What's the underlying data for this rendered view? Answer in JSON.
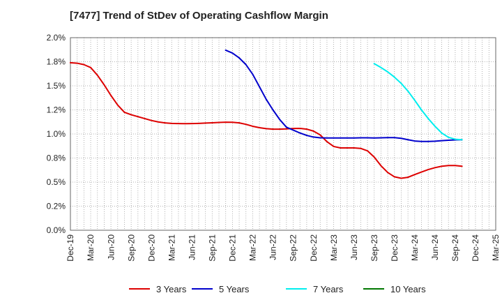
{
  "chart_data": {
    "type": "line",
    "title": "[7477]  Trend of StDev of Operating Cashflow Margin",
    "xlabel": "",
    "ylabel": "",
    "x_ticks": [
      "Dec-19",
      "Mar-20",
      "Jun-20",
      "Sep-20",
      "Dec-20",
      "Mar-21",
      "Jun-21",
      "Sep-21",
      "Dec-21",
      "Mar-22",
      "Jun-22",
      "Sep-22",
      "Dec-22",
      "Mar-23",
      "Jun-23",
      "Sep-23",
      "Dec-23",
      "Mar-24",
      "Jun-24",
      "Sep-24",
      "Dec-24",
      "Mar-25"
    ],
    "y_ticks": [
      "0.0%",
      "0.2%",
      "0.5%",
      "0.8%",
      "1.0%",
      "1.2%",
      "1.5%",
      "1.8%",
      "2.0%"
    ],
    "y_tick_values": [
      0,
      0.25,
      0.5,
      0.75,
      1.0,
      1.25,
      1.5,
      1.75,
      2.0
    ],
    "ylim": [
      0,
      2.0
    ],
    "y_unit": "%",
    "grid": true,
    "legend_position": "bottom",
    "series": [
      {
        "name": "3 Years",
        "color": "#dd0000",
        "points": [
          [
            "Dec-19",
            1.74
          ],
          [
            "Jan-20",
            1.735
          ],
          [
            "Feb-20",
            1.72
          ],
          [
            "Mar-20",
            1.69
          ],
          [
            "Apr-20",
            1.61
          ],
          [
            "May-20",
            1.51
          ],
          [
            "Jun-20",
            1.4
          ],
          [
            "Jul-20",
            1.3
          ],
          [
            "Aug-20",
            1.225
          ],
          [
            "Sep-20",
            1.2
          ],
          [
            "Oct-20",
            1.18
          ],
          [
            "Nov-20",
            1.16
          ],
          [
            "Dec-20",
            1.14
          ],
          [
            "Jan-21",
            1.125
          ],
          [
            "Feb-21",
            1.115
          ],
          [
            "Mar-21",
            1.11
          ],
          [
            "Apr-21",
            1.108
          ],
          [
            "May-21",
            1.107
          ],
          [
            "Jun-21",
            1.108
          ],
          [
            "Jul-21",
            1.11
          ],
          [
            "Aug-21",
            1.113
          ],
          [
            "Sep-21",
            1.116
          ],
          [
            "Oct-21",
            1.12
          ],
          [
            "Nov-21",
            1.122
          ],
          [
            "Dec-21",
            1.121
          ],
          [
            "Jan-22",
            1.115
          ],
          [
            "Feb-22",
            1.1
          ],
          [
            "Mar-22",
            1.08
          ],
          [
            "Apr-22",
            1.065
          ],
          [
            "May-22",
            1.055
          ],
          [
            "Jun-22",
            1.05
          ],
          [
            "Jul-22",
            1.05
          ],
          [
            "Aug-22",
            1.053
          ],
          [
            "Sep-22",
            1.057
          ],
          [
            "Oct-22",
            1.058
          ],
          [
            "Nov-22",
            1.05
          ],
          [
            "Dec-22",
            1.03
          ],
          [
            "Jan-23",
            0.99
          ],
          [
            "Feb-23",
            0.92
          ],
          [
            "Mar-23",
            0.87
          ],
          [
            "Apr-23",
            0.855
          ],
          [
            "May-23",
            0.855
          ],
          [
            "Jun-23",
            0.855
          ],
          [
            "Jul-23",
            0.85
          ],
          [
            "Aug-23",
            0.825
          ],
          [
            "Sep-23",
            0.76
          ],
          [
            "Oct-23",
            0.67
          ],
          [
            "Nov-23",
            0.6
          ],
          [
            "Dec-23",
            0.555
          ],
          [
            "Jan-24",
            0.54
          ],
          [
            "Feb-24",
            0.55
          ],
          [
            "Mar-24",
            0.578
          ],
          [
            "Apr-24",
            0.605
          ],
          [
            "May-24",
            0.63
          ],
          [
            "Jun-24",
            0.65
          ],
          [
            "Jul-24",
            0.665
          ],
          [
            "Aug-24",
            0.672
          ],
          [
            "Sep-24",
            0.672
          ],
          [
            "Oct-24",
            0.665
          ]
        ]
      },
      {
        "name": "5 Years",
        "color": "#0000cc",
        "points": [
          [
            "Nov-21",
            1.87
          ],
          [
            "Dec-21",
            1.84
          ],
          [
            "Jan-22",
            1.79
          ],
          [
            "Feb-22",
            1.72
          ],
          [
            "Mar-22",
            1.62
          ],
          [
            "Apr-22",
            1.49
          ],
          [
            "May-22",
            1.36
          ],
          [
            "Jun-22",
            1.25
          ],
          [
            "Jul-22",
            1.15
          ],
          [
            "Aug-22",
            1.07
          ],
          [
            "Sep-22",
            1.04
          ],
          [
            "Oct-22",
            1.01
          ],
          [
            "Nov-22",
            0.985
          ],
          [
            "Dec-22",
            0.968
          ],
          [
            "Jan-23",
            0.96
          ],
          [
            "Feb-23",
            0.958
          ],
          [
            "Mar-23",
            0.958
          ],
          [
            "Apr-23",
            0.958
          ],
          [
            "May-23",
            0.958
          ],
          [
            "Jun-23",
            0.958
          ],
          [
            "Jul-23",
            0.96
          ],
          [
            "Aug-23",
            0.96
          ],
          [
            "Sep-23",
            0.958
          ],
          [
            "Oct-23",
            0.96
          ],
          [
            "Nov-23",
            0.962
          ],
          [
            "Dec-23",
            0.962
          ],
          [
            "Jan-24",
            0.955
          ],
          [
            "Feb-24",
            0.94
          ],
          [
            "Mar-24",
            0.927
          ],
          [
            "Apr-24",
            0.922
          ],
          [
            "May-24",
            0.922
          ],
          [
            "Jun-24",
            0.925
          ],
          [
            "Jul-24",
            0.93
          ],
          [
            "Aug-24",
            0.935
          ],
          [
            "Sep-24",
            0.938
          ],
          [
            "Oct-24",
            0.94
          ]
        ]
      },
      {
        "name": "7 Years",
        "color": "#00eeee",
        "points": [
          [
            "Sep-23",
            1.73
          ],
          [
            "Oct-23",
            1.69
          ],
          [
            "Nov-23",
            1.645
          ],
          [
            "Dec-23",
            1.59
          ],
          [
            "Jan-24",
            1.525
          ],
          [
            "Feb-24",
            1.445
          ],
          [
            "Mar-24",
            1.35
          ],
          [
            "Apr-24",
            1.25
          ],
          [
            "May-24",
            1.16
          ],
          [
            "Jun-24",
            1.08
          ],
          [
            "Jul-24",
            1.01
          ],
          [
            "Aug-24",
            0.965
          ],
          [
            "Sep-24",
            0.945
          ],
          [
            "Oct-24",
            0.94
          ]
        ]
      },
      {
        "name": "10 Years",
        "color": "#007700",
        "points": []
      }
    ]
  }
}
